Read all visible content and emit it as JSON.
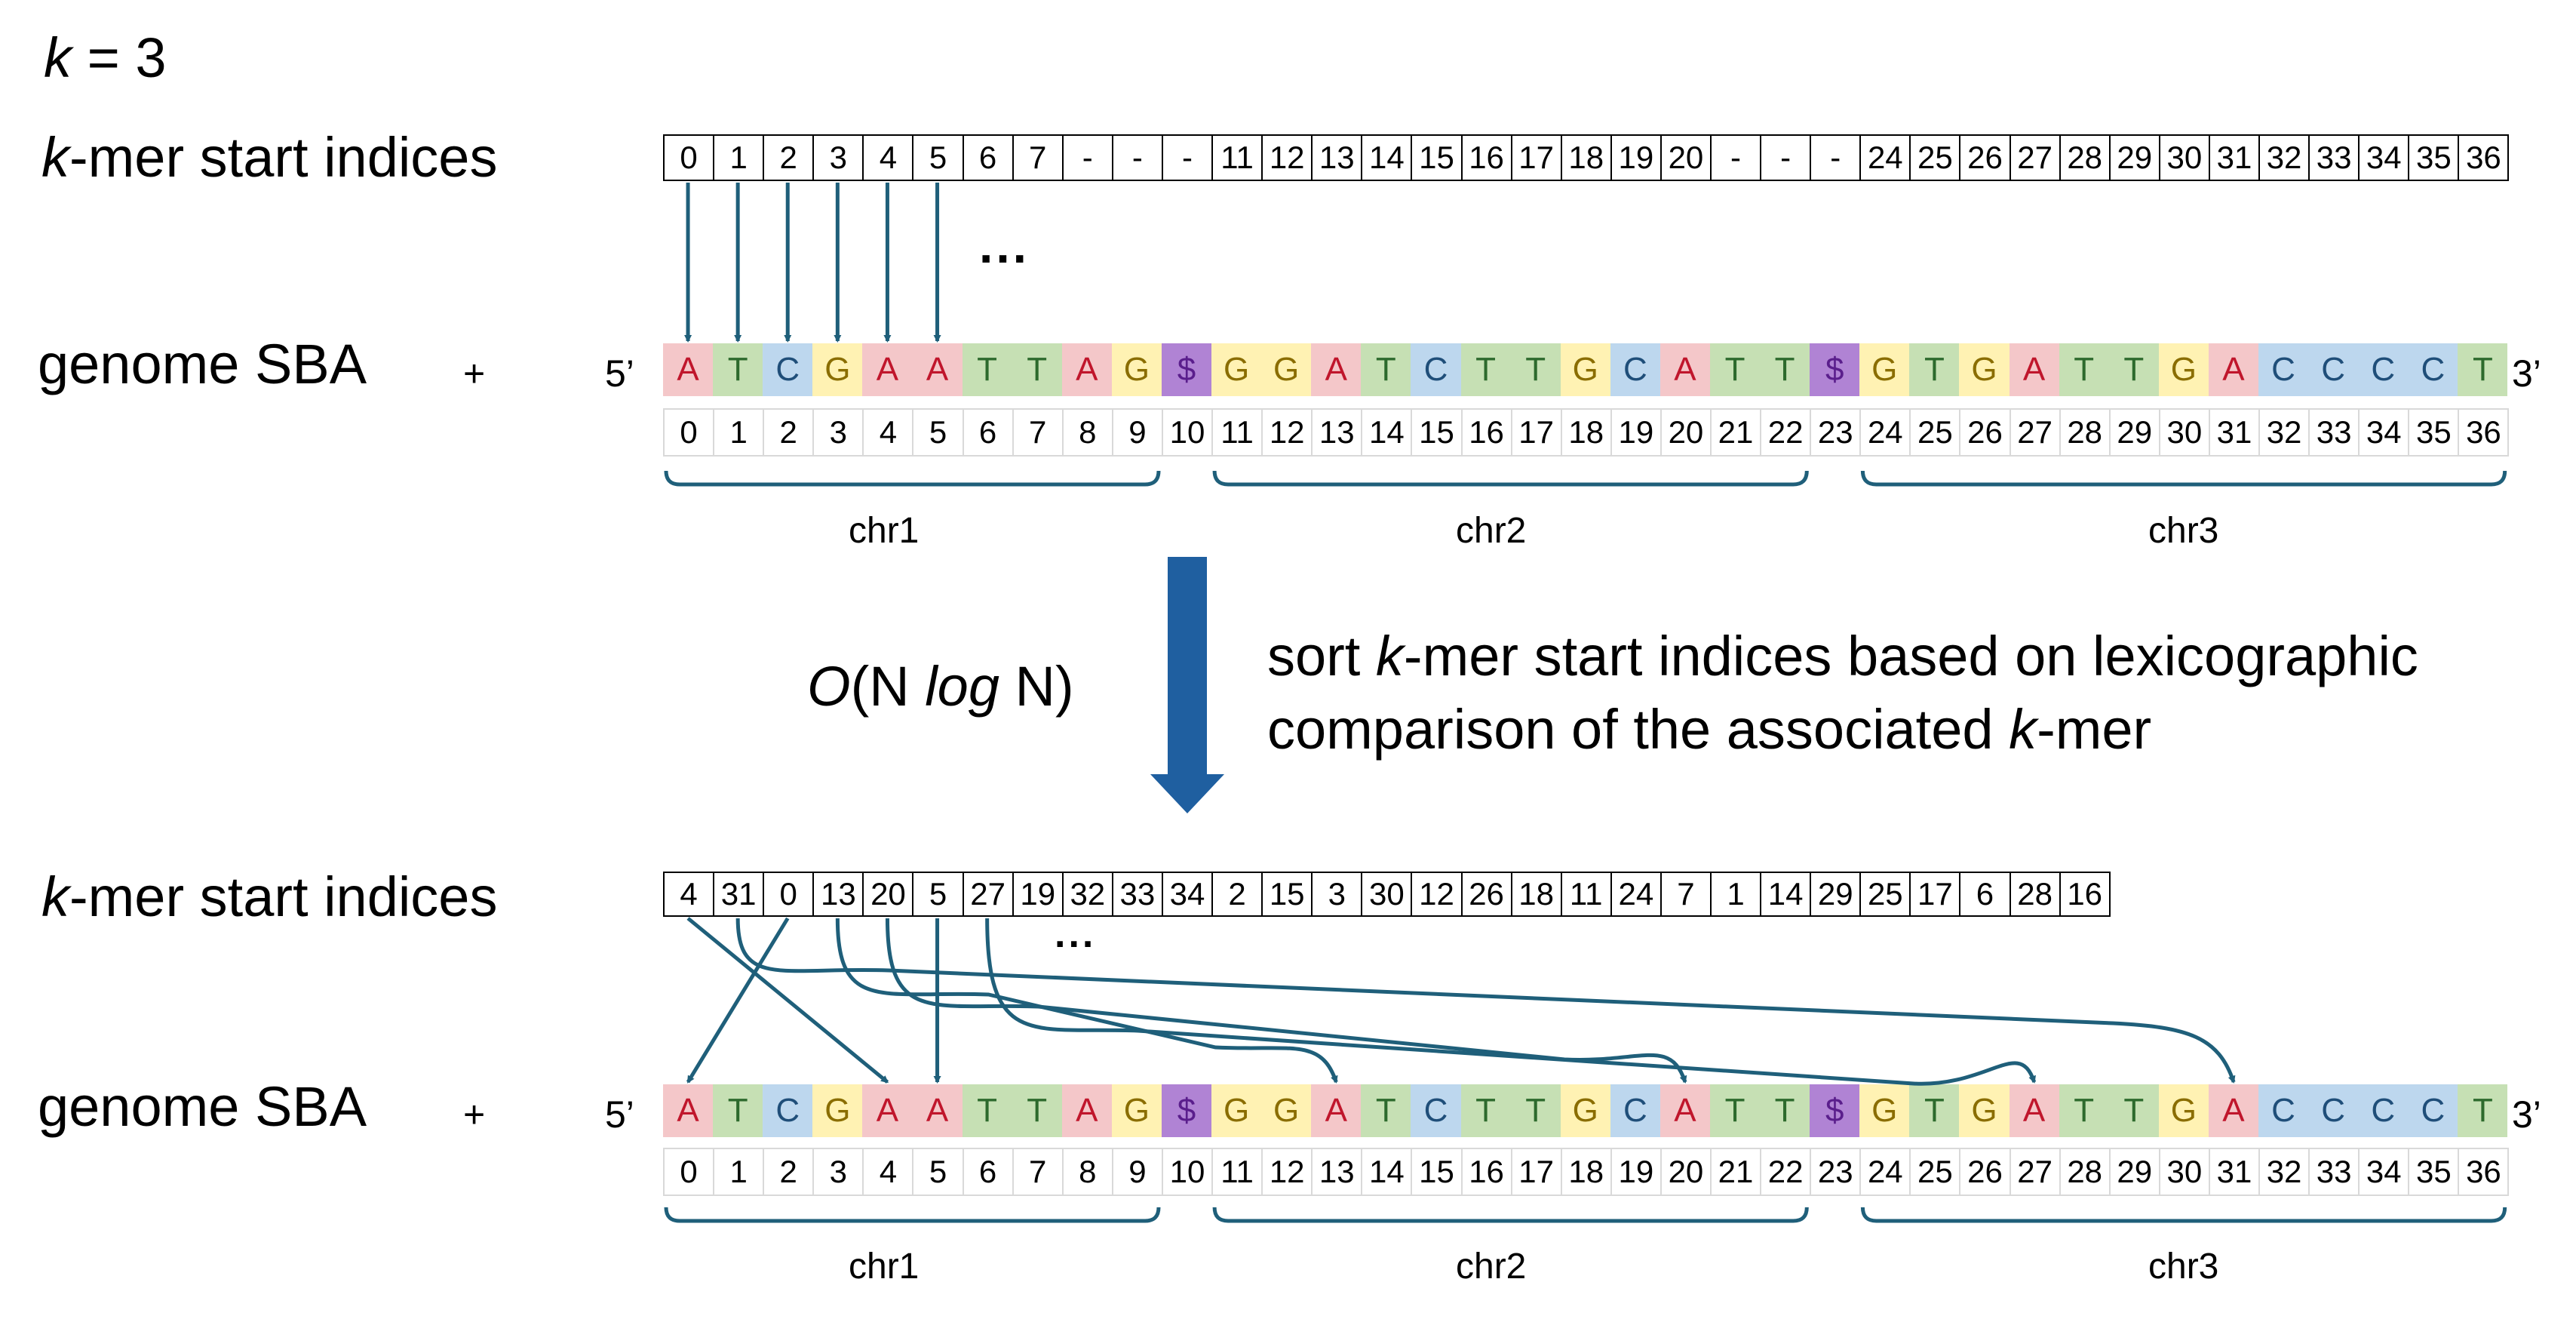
{
  "k_label": {
    "var": "k",
    "value": "= 3"
  },
  "kmer_label": {
    "var": "k",
    "rest": "-mer start indices"
  },
  "genome_label": "genome SBA",
  "plus": "+",
  "five_prime": "5’",
  "three_prime": "3’",
  "ellipsis_top": "...",
  "ellipsis_bottom": "...",
  "complexity": {
    "prefix": "O",
    "open": "(N ",
    "log": "log",
    "close": " N)"
  },
  "description": {
    "line1_pre": "sort ",
    "line1_var": "k",
    "line1_post": "-mer start indices based on lexicographic",
    "line2_pre": "comparison of the associated ",
    "line2_var": "k",
    "line2_post": "-mer"
  },
  "chromosomes": [
    "chr1",
    "chr2",
    "chr3"
  ],
  "unsorted_indices": [
    "0",
    "1",
    "2",
    "3",
    "4",
    "5",
    "6",
    "7",
    "-",
    "-",
    "-",
    "11",
    "12",
    "13",
    "14",
    "15",
    "16",
    "17",
    "18",
    "19",
    "20",
    "-",
    "-",
    "-",
    "24",
    "25",
    "26",
    "27",
    "28",
    "29",
    "30",
    "31",
    "32",
    "33",
    "34",
    "35",
    "36"
  ],
  "sorted_indices": [
    "4",
    "31",
    "0",
    "13",
    "20",
    "5",
    "27",
    "19",
    "32",
    "33",
    "34",
    "2",
    "15",
    "3",
    "30",
    "12",
    "26",
    "18",
    "11",
    "24",
    "7",
    "1",
    "14",
    "29",
    "25",
    "17",
    "6",
    "28",
    "16"
  ],
  "sequence": [
    "A",
    "T",
    "C",
    "G",
    "A",
    "A",
    "T",
    "T",
    "A",
    "G",
    "$",
    "G",
    "G",
    "A",
    "T",
    "C",
    "T",
    "T",
    "G",
    "C",
    "A",
    "T",
    "T",
    "$",
    "G",
    "T",
    "G",
    "A",
    "T",
    "T",
    "G",
    "A",
    "C",
    "C",
    "C",
    "C",
    "T"
  ],
  "positions": [
    "0",
    "1",
    "2",
    "3",
    "4",
    "5",
    "6",
    "7",
    "8",
    "9",
    "10",
    "11",
    "12",
    "13",
    "14",
    "15",
    "16",
    "17",
    "18",
    "19",
    "20",
    "21",
    "22",
    "23",
    "24",
    "25",
    "26",
    "27",
    "28",
    "29",
    "30",
    "31",
    "32",
    "33",
    "34",
    "35",
    "36"
  ],
  "colors": {
    "A": {
      "bg": "#f4c7c9",
      "fg": "#c0162c"
    },
    "T": {
      "bg": "#c6e0b4",
      "fg": "#2d6a2d"
    },
    "C": {
      "bg": "#bdd7ee",
      "fg": "#1f4e79"
    },
    "G": {
      "bg": "#fff2b3",
      "fg": "#8a6d00"
    },
    "$": {
      "bg": "#b083d4",
      "fg": "#5a1e8c"
    },
    "arrow": "#1f5f7a",
    "big_arrow": "#1f5fa0"
  },
  "arrows_top_targets": [
    0,
    1,
    2,
    3,
    4,
    5
  ],
  "arrows_bottom": [
    {
      "from": 0,
      "to": 4
    },
    {
      "from": 1,
      "to": 31
    },
    {
      "from": 2,
      "to": 0
    },
    {
      "from": 3,
      "to": 13
    },
    {
      "from": 4,
      "to": 20
    },
    {
      "from": 5,
      "to": 5
    },
    {
      "from": 6,
      "to": 27
    }
  ]
}
